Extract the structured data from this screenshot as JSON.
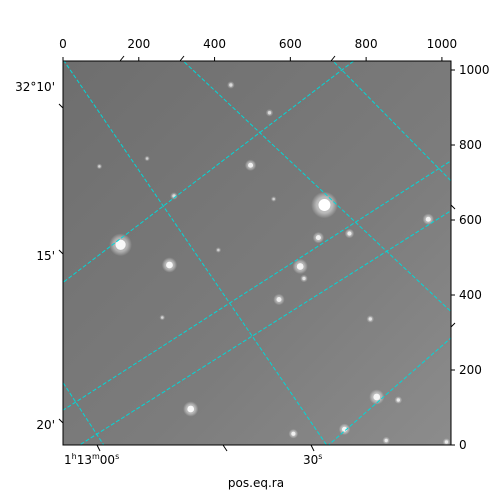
{
  "chart_data": {
    "type": "image",
    "xlabel": "pos.eq.ra",
    "ylabel": "",
    "pixel_axes": {
      "x_ticks": [
        "0",
        "200",
        "400",
        "600",
        "800",
        "1000"
      ],
      "x_tick_values": [
        0,
        200,
        400,
        600,
        800,
        1000
      ],
      "y_ticks": [
        "0",
        "200",
        "400",
        "600",
        "800",
        "1000"
      ],
      "y_tick_values": [
        0,
        200,
        400,
        600,
        800,
        1000
      ],
      "xlim": [
        0,
        1024
      ],
      "ylim": [
        0,
        1024
      ]
    },
    "world_axes": {
      "ra_labels": [
        {
          "h": "1",
          "m": "13",
          "s": "00",
          "value": "1h13m00s"
        },
        {
          "h": "",
          "m": "",
          "s": "30",
          "value": "30s"
        }
      ],
      "dec_labels": [
        "32°10'",
        "15'",
        "20'"
      ]
    },
    "grid": true,
    "grid_color": "#00d8d8",
    "image_background": "#7a7a7a",
    "sources": [
      {
        "x": 690,
        "y": 640,
        "r": 7,
        "brightness": 1.0
      },
      {
        "x": 152,
        "y": 534,
        "r": 6,
        "brightness": 0.9
      },
      {
        "x": 281,
        "y": 480,
        "r": 4,
        "brightness": 0.9
      },
      {
        "x": 626,
        "y": 476,
        "r": 4,
        "brightness": 0.85
      },
      {
        "x": 337,
        "y": 96,
        "r": 4,
        "brightness": 0.9
      },
      {
        "x": 828,
        "y": 128,
        "r": 4,
        "brightness": 0.85
      },
      {
        "x": 495,
        "y": 746,
        "r": 3,
        "brightness": 0.8
      },
      {
        "x": 674,
        "y": 553,
        "r": 3,
        "brightness": 0.8
      },
      {
        "x": 756,
        "y": 564,
        "r": 2.5,
        "brightness": 0.75
      },
      {
        "x": 964,
        "y": 602,
        "r": 3,
        "brightness": 0.8
      },
      {
        "x": 570,
        "y": 388,
        "r": 3,
        "brightness": 0.75
      },
      {
        "x": 636,
        "y": 444,
        "r": 2,
        "brightness": 0.65
      },
      {
        "x": 811,
        "y": 336,
        "r": 2,
        "brightness": 0.65
      },
      {
        "x": 743,
        "y": 42,
        "r": 3,
        "brightness": 0.85
      },
      {
        "x": 608,
        "y": 30,
        "r": 2.5,
        "brightness": 0.8
      },
      {
        "x": 885,
        "y": 120,
        "r": 2,
        "brightness": 0.7
      },
      {
        "x": 853,
        "y": 12,
        "r": 2,
        "brightness": 0.7
      },
      {
        "x": 1012,
        "y": 8,
        "r": 2,
        "brightness": 0.7
      },
      {
        "x": 293,
        "y": 664,
        "r": 2,
        "brightness": 0.6
      },
      {
        "x": 443,
        "y": 960,
        "r": 2,
        "brightness": 0.6
      },
      {
        "x": 545,
        "y": 886,
        "r": 2,
        "brightness": 0.6
      },
      {
        "x": 262,
        "y": 340,
        "r": 1.5,
        "brightness": 0.55
      },
      {
        "x": 96,
        "y": 743,
        "r": 1.5,
        "brightness": 0.55
      },
      {
        "x": 222,
        "y": 764,
        "r": 1.5,
        "brightness": 0.5
      },
      {
        "x": 556,
        "y": 656,
        "r": 1.5,
        "brightness": 0.5
      },
      {
        "x": 410,
        "y": 520,
        "r": 1.5,
        "brightness": 0.5
      }
    ]
  }
}
